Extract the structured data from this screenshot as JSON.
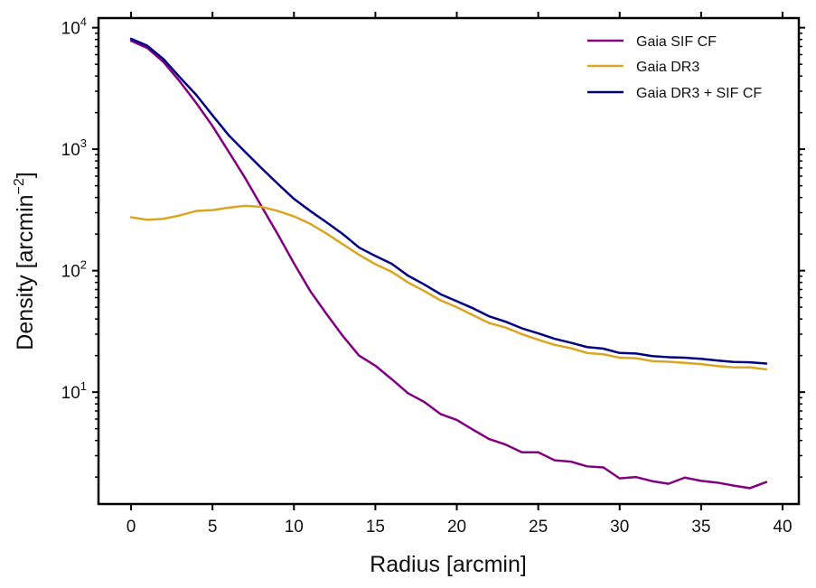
{
  "chart_data": {
    "type": "line",
    "title": "",
    "xlabel": "Radius [arcmin]",
    "ylabel": "Density [arcmin",
    "ylabel_sup": "−2",
    "ylabel_close": "]",
    "xlim": [
      -2,
      41
    ],
    "ylim": [
      1.2,
      12000
    ],
    "yscale": "log",
    "x_ticks": [
      0,
      5,
      10,
      15,
      20,
      25,
      30,
      35,
      40
    ],
    "x_tick_labels": [
      "0",
      "5",
      "10",
      "15",
      "20",
      "25",
      "30",
      "35",
      "40"
    ],
    "y_ticks": [
      10,
      100,
      1000,
      10000
    ],
    "y_tick_base": "10",
    "y_tick_exponents": [
      "1",
      "2",
      "3",
      "4"
    ],
    "legend_position": "top-right",
    "x": [
      0,
      1,
      2,
      3,
      4,
      5,
      6,
      7,
      8,
      9,
      10,
      11,
      12,
      13,
      14,
      15,
      16,
      17,
      18,
      19,
      20,
      21,
      22,
      23,
      24,
      25,
      26,
      27,
      28,
      29,
      30,
      31,
      32,
      33,
      34,
      35,
      36,
      37,
      38,
      39
    ],
    "series": [
      {
        "name": "Gaia SIF CF",
        "color": "#800080",
        "values": [
          7800,
          6800,
          5200,
          3600,
          2400,
          1550,
          950,
          580,
          340,
          200,
          115,
          68,
          44,
          29,
          20,
          16.5,
          12.8,
          9.8,
          8.3,
          6.6,
          5.9,
          4.9,
          4.1,
          3.7,
          3.2,
          3.2,
          2.75,
          2.68,
          2.45,
          2.4,
          1.95,
          2.0,
          1.85,
          1.76,
          1.98,
          1.86,
          1.8,
          1.7,
          1.62,
          1.82
        ]
      },
      {
        "name": "Gaia DR3",
        "color": "#DAA520",
        "values": [
          275,
          262,
          267,
          285,
          310,
          315,
          330,
          342,
          335,
          310,
          280,
          243,
          202,
          165,
          135,
          113,
          98,
          80,
          68,
          57,
          50,
          43,
          37,
          34,
          30,
          27,
          24.5,
          23,
          21,
          20.5,
          19.2,
          19,
          18,
          17.8,
          17.4,
          17,
          16.4,
          16,
          16,
          15.4
        ]
      },
      {
        "name": "Gaia DR3 + SIF CF",
        "color": "#000080",
        "values": [
          8100,
          7100,
          5500,
          3900,
          2800,
          1900,
          1300,
          950,
          700,
          520,
          390,
          310,
          250,
          200,
          155,
          132,
          114,
          91,
          77,
          64,
          56,
          49,
          42,
          38,
          33.5,
          30.5,
          27.5,
          25.5,
          23.5,
          22.8,
          21,
          20.8,
          19.8,
          19.4,
          19.2,
          18.8,
          18.2,
          17.7,
          17.6,
          17.2
        ]
      }
    ]
  }
}
